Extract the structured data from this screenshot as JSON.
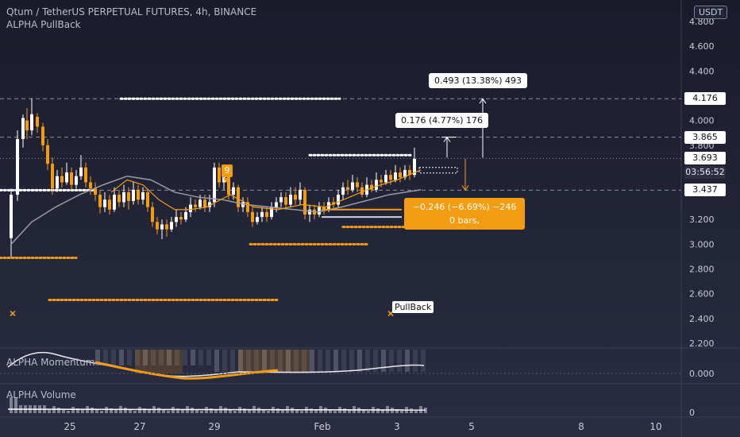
{
  "header": {
    "title": "Qtum / TetherUS PERPETUAL FUTURES, 4h, BINANCE",
    "indicator": "ALPHA PullBack",
    "currency": "USDT"
  },
  "price_axis": {
    "ticks": [
      "4.800",
      "4.600",
      "4.400",
      "4.000",
      "3.800",
      "3.200",
      "3.000",
      "2.800",
      "2.600",
      "2.400",
      "2.200"
    ],
    "tick_values": [
      4.8,
      4.6,
      4.4,
      4.0,
      3.8,
      3.2,
      3.0,
      2.8,
      2.6,
      2.4,
      2.2
    ],
    "tags": [
      {
        "label": "4.176",
        "value": 4.176,
        "style": "white"
      },
      {
        "label": "3.865",
        "value": 3.865,
        "style": "white"
      },
      {
        "label": "3.693",
        "value": 3.693,
        "style": "white"
      },
      {
        "label": "03:56:52",
        "value": 3.58,
        "style": "timer"
      },
      {
        "label": "3.437",
        "value": 3.437,
        "style": "white"
      }
    ]
  },
  "time_axis": {
    "labels": [
      "25",
      "27",
      "29",
      "Feb",
      "3",
      "5",
      "8",
      "10"
    ]
  },
  "measures": {
    "upper": "0.493 (13.38%) 493",
    "middle": "0.176 (4.77%) 176",
    "lower_line1": "−0.246 (−6.69%) −246",
    "lower_line2": "0 bars,"
  },
  "markers": {
    "nine": "9",
    "pullback": "PullBack"
  },
  "momentum_pane": {
    "label": "ALPHA Momentum",
    "tick": "0.000"
  },
  "volume_pane": {
    "label": "ALPHA Volume",
    "tick": "0"
  },
  "colors": {
    "background": "#1a1c2c",
    "bull": "#ffffff",
    "bear": "#f39c12",
    "ma": "#9a9ba3",
    "ma_fast": "#f39c12"
  }
}
